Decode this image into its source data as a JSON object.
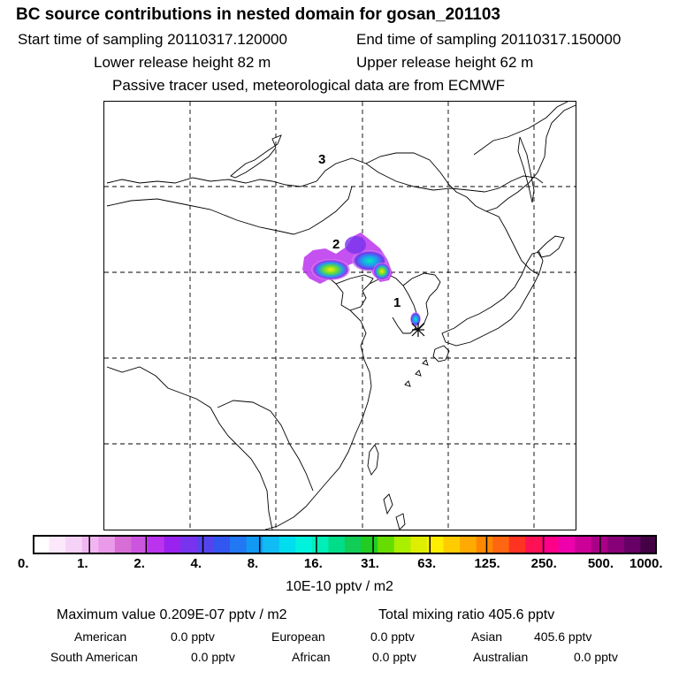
{
  "header": {
    "title": "BC  source contributions in nested domain for gosan_201103",
    "start_time": "Start time of sampling 20110317.120000",
    "end_time": "End time of sampling 20110317.150000",
    "lower_height": "Lower release height   82 m",
    "upper_height": "Upper release height   62 m",
    "tracer_note": "Passive tracer used, meteorological data are from ECMWF"
  },
  "map": {
    "labels": {
      "one": "1",
      "two": "2",
      "three": "3"
    },
    "receptor_marker": "star-icon"
  },
  "colorbar": {
    "ticks": [
      "0.",
      "1.",
      "2.",
      "4.",
      "8.",
      "16.",
      "31.",
      "63.",
      "125.",
      "250.",
      "500.",
      "1000."
    ],
    "colors": [
      "#ffffff",
      "#fbe8fb",
      "#f7d2f7",
      "#f1b6f1",
      "#e99ae9",
      "#d66ed6",
      "#cc55e0",
      "#bb33ee",
      "#9a22ee",
      "#7733ee",
      "#5544ee",
      "#3355f0",
      "#2277f2",
      "#1199f4",
      "#11bbf4",
      "#00ddee",
      "#00f2dd",
      "#00eeb8",
      "#00dd88",
      "#11cc55",
      "#22cc22",
      "#66dd00",
      "#aaee00",
      "#ddee00",
      "#ffee00",
      "#ffcc00",
      "#ffaa00",
      "#ff8800",
      "#ff6611",
      "#ff3322",
      "#ff1155",
      "#ff0088",
      "#ee00aa",
      "#cc0099",
      "#aa0088",
      "#880077",
      "#660066",
      "#440044"
    ],
    "units": "10E-10 pptv / m2"
  },
  "stats": {
    "maximum": "Maximum value  0.209E-07 pptv / m2",
    "total": "Total mixing ratio      405.6 pptv",
    "american_label": "American",
    "american_value": "0.0 pptv",
    "european_label": "European",
    "european_value": "0.0 pptv",
    "asian_label": "Asian",
    "asian_value": "405.6 pptv",
    "southamerican_label": "South American",
    "southamerican_value": "0.0 pptv",
    "african_label": "African",
    "african_value": "0.0 pptv",
    "australian_label": "Australian",
    "australian_value": "0.0 pptv"
  }
}
